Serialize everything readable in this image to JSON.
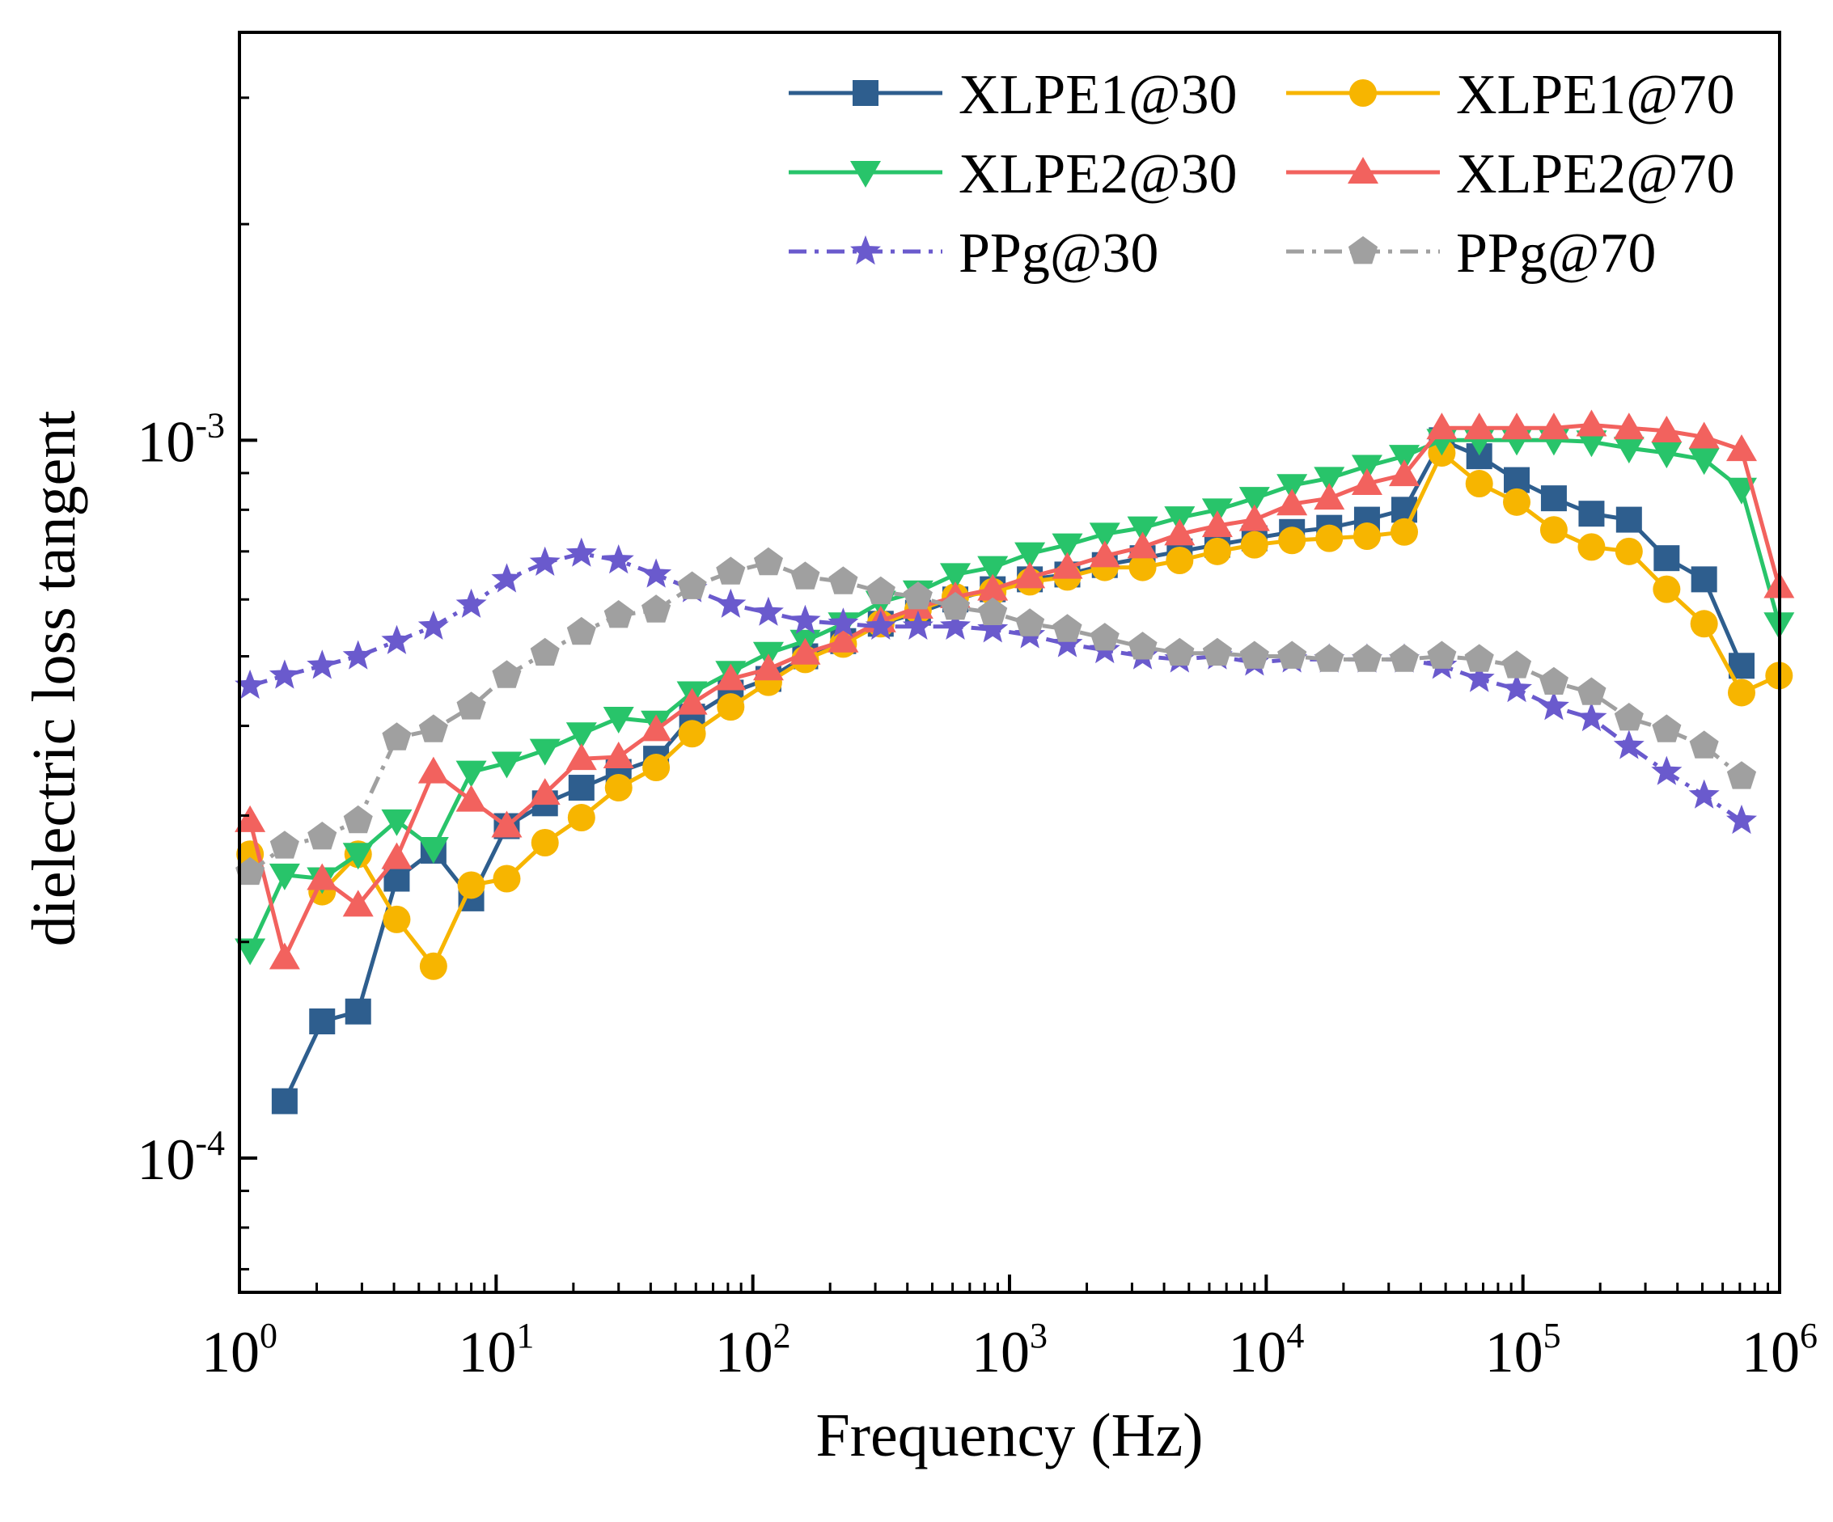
{
  "chart_data": {
    "type": "line",
    "title": "",
    "xlabel": "Frequency (Hz)",
    "ylabel": "dielectric loss tangent",
    "xscale": "log",
    "yscale": "log",
    "xlim": [
      1,
      1000000
    ],
    "ylim": [
      6.5e-05,
      0.0037
    ],
    "grid": false,
    "legend_position": "top-right",
    "x_ticks": [
      {
        "base": "10",
        "exp": "0",
        "value": 1
      },
      {
        "base": "10",
        "exp": "1",
        "value": 10
      },
      {
        "base": "10",
        "exp": "2",
        "value": 100
      },
      {
        "base": "10",
        "exp": "3",
        "value": 1000
      },
      {
        "base": "10",
        "exp": "4",
        "value": 10000
      },
      {
        "base": "10",
        "exp": "5",
        "value": 100000
      },
      {
        "base": "10",
        "exp": "6",
        "value": 1000000
      }
    ],
    "y_ticks": [
      {
        "base": "10",
        "exp": "-4",
        "value": 0.0001
      },
      {
        "base": "10",
        "exp": "-3",
        "value": 0.001
      }
    ],
    "x": [
      1.1,
      1.5,
      2.1,
      2.9,
      4.1,
      5.7,
      8,
      11,
      15.5,
      21.5,
      30,
      42,
      58,
      82,
      115,
      160,
      225,
      315,
      440,
      615,
      860,
      1200,
      1680,
      2350,
      3300,
      4600,
      6450,
      9000,
      12600,
      17600,
      24700,
      34500,
      48300,
      67600,
      94600,
      132000,
      185000,
      259000,
      363000,
      508000,
      711000,
      995000
    ],
    "series": [
      {
        "name": "XLPE1@30",
        "color": "#2e5e8e",
        "marker": "square",
        "dash": "solid",
        "values": [
          null,
          0.00012,
          0.000155,
          0.00016,
          0.000245,
          0.000268,
          0.00023,
          0.00029,
          0.000312,
          0.000328,
          0.000345,
          0.00036,
          0.000412,
          0.000445,
          0.000465,
          0.0005,
          0.000525,
          0.000555,
          0.000575,
          0.0006,
          0.00062,
          0.00064,
          0.00065,
          0.00067,
          0.000685,
          0.0007,
          0.000715,
          0.00073,
          0.000745,
          0.000755,
          0.000775,
          0.0008,
          0.001,
          0.00095,
          0.00088,
          0.00083,
          0.00079,
          0.000775,
          0.000685,
          0.00064,
          0.000485,
          null
        ]
      },
      {
        "name": "XLPE1@70",
        "color": "#f7b500",
        "marker": "circle",
        "dash": "solid",
        "values": [
          0.000265,
          null,
          0.000235,
          0.000265,
          0.000215,
          0.000185,
          0.00024,
          0.000245,
          0.000275,
          0.000298,
          0.000328,
          0.00035,
          0.00039,
          0.000425,
          0.00046,
          0.000495,
          0.00052,
          0.000555,
          0.00058,
          0.000605,
          0.000615,
          0.000635,
          0.000645,
          0.000665,
          0.000665,
          0.00068,
          0.0007,
          0.000715,
          0.000725,
          0.00073,
          0.000735,
          0.000745,
          0.00096,
          0.00087,
          0.00082,
          0.00075,
          0.00071,
          0.0007,
          0.00062,
          0.000555,
          0.000445,
          0.00047
        ]
      },
      {
        "name": "XLPE2@30",
        "color": "#28c46a",
        "marker": "triangle-down",
        "dash": "solid",
        "values": [
          0.000195,
          0.000248,
          0.000245,
          0.000265,
          0.000295,
          0.00027,
          0.000345,
          0.000355,
          0.00037,
          0.00039,
          0.00041,
          0.000405,
          0.000445,
          0.000475,
          0.000505,
          0.000525,
          0.000555,
          0.000595,
          0.000615,
          0.00065,
          0.000665,
          0.000695,
          0.000715,
          0.00074,
          0.000755,
          0.00078,
          0.0008,
          0.00083,
          0.000865,
          0.000885,
          0.00092,
          0.00095,
          0.001,
          0.001,
          0.001,
          0.001,
          0.000995,
          0.000975,
          0.00096,
          0.00094,
          0.000855,
          0.000555
        ]
      },
      {
        "name": "XLPE2@70",
        "color": "#f2625e",
        "marker": "triangle-up",
        "dash": "solid",
        "values": [
          0.000295,
          0.00019,
          0.000245,
          0.000225,
          0.000262,
          0.000345,
          0.000315,
          0.00029,
          0.000322,
          0.00036,
          0.000362,
          0.000395,
          0.00043,
          0.000465,
          0.00048,
          0.000505,
          0.000525,
          0.00056,
          0.000585,
          0.000605,
          0.00062,
          0.000645,
          0.000665,
          0.00069,
          0.00071,
          0.00074,
          0.00076,
          0.000775,
          0.000815,
          0.00083,
          0.00087,
          0.000895,
          0.00104,
          0.00104,
          0.00104,
          0.00104,
          0.00105,
          0.00104,
          0.00103,
          0.00101,
          0.00097,
          0.000625
        ]
      },
      {
        "name": "PPg@30",
        "color": "#6a5acd",
        "marker": "star",
        "dash": "dashdot",
        "values": [
          0.000455,
          0.00047,
          0.000485,
          0.0005,
          0.000525,
          0.00055,
          0.00059,
          0.00064,
          0.000675,
          0.000695,
          0.00068,
          0.00065,
          0.00062,
          0.00059,
          0.000575,
          0.00056,
          0.000555,
          0.00055,
          0.00055,
          0.00055,
          0.000545,
          0.000535,
          0.00052,
          0.00051,
          0.0005,
          0.000495,
          0.0005,
          0.00049,
          0.000495,
          0.000495,
          0.000495,
          0.000495,
          0.000485,
          0.000465,
          0.00045,
          0.000425,
          0.00041,
          0.000375,
          0.000345,
          0.00032,
          0.000295,
          null
        ]
      },
      {
        "name": "PPg@70",
        "color": "#a0a0a0",
        "marker": "pentagon",
        "dash": "dashdot",
        "values": [
          0.00025,
          0.000272,
          0.00028,
          0.000295,
          0.000385,
          0.000395,
          0.000425,
          0.00047,
          0.000505,
          0.00054,
          0.00057,
          0.00058,
          0.000625,
          0.000655,
          0.000675,
          0.000645,
          0.000635,
          0.000615,
          0.000605,
          0.000585,
          0.000575,
          0.000555,
          0.000545,
          0.00053,
          0.000515,
          0.000505,
          0.000505,
          0.0005,
          0.0005,
          0.000495,
          0.000495,
          0.000495,
          0.0005,
          0.000495,
          0.000485,
          0.00046,
          0.000445,
          0.00041,
          0.000395,
          0.000375,
          0.00034,
          null
        ]
      }
    ]
  }
}
